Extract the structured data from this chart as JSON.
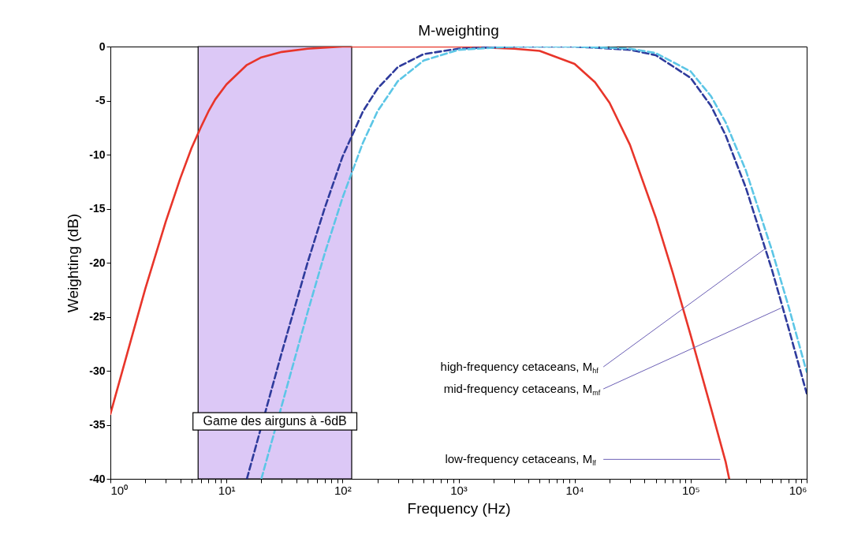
{
  "chart_data": {
    "type": "line",
    "title": "M-weighting",
    "xlabel": "Frequency (Hz)",
    "ylabel": "Weighting (dB)",
    "log": "x",
    "xlim": [
      1,
      1000000
    ],
    "ylim": [
      -40,
      0
    ],
    "xticks": [
      {
        "value": 1,
        "label": "10⁰"
      },
      {
        "value": 2,
        "label": null
      },
      {
        "value": 3,
        "label": null
      },
      {
        "value": 4,
        "label": null
      },
      {
        "value": 5,
        "label": null
      },
      {
        "value": 6,
        "label": null
      },
      {
        "value": 7,
        "label": null
      },
      {
        "value": 8,
        "label": null
      },
      {
        "value": 9,
        "label": null
      },
      {
        "value": 10,
        "label": "10¹"
      },
      {
        "value": 20,
        "label": null
      },
      {
        "value": 30,
        "label": null
      },
      {
        "value": 40,
        "label": null
      },
      {
        "value": 50,
        "label": null
      },
      {
        "value": 60,
        "label": null
      },
      {
        "value": 70,
        "label": null
      },
      {
        "value": 80,
        "label": null
      },
      {
        "value": 90,
        "label": null
      },
      {
        "value": 100,
        "label": "10²"
      },
      {
        "value": 200,
        "label": null
      },
      {
        "value": 300,
        "label": null
      },
      {
        "value": 400,
        "label": null
      },
      {
        "value": 500,
        "label": null
      },
      {
        "value": 600,
        "label": null
      },
      {
        "value": 700,
        "label": null
      },
      {
        "value": 800,
        "label": null
      },
      {
        "value": 900,
        "label": null
      },
      {
        "value": 1000,
        "label": "10³"
      },
      {
        "value": 2000,
        "label": null
      },
      {
        "value": 3000,
        "label": null
      },
      {
        "value": 4000,
        "label": null
      },
      {
        "value": 5000,
        "label": null
      },
      {
        "value": 6000,
        "label": null
      },
      {
        "value": 7000,
        "label": null
      },
      {
        "value": 8000,
        "label": null
      },
      {
        "value": 9000,
        "label": null
      },
      {
        "value": 10000,
        "label": "10⁴"
      },
      {
        "value": 20000,
        "label": null
      },
      {
        "value": 30000,
        "label": null
      },
      {
        "value": 40000,
        "label": null
      },
      {
        "value": 50000,
        "label": null
      },
      {
        "value": 60000,
        "label": null
      },
      {
        "value": 70000,
        "label": null
      },
      {
        "value": 80000,
        "label": null
      },
      {
        "value": 90000,
        "label": null
      },
      {
        "value": 100000,
        "label": "10⁵"
      },
      {
        "value": 200000,
        "label": null
      },
      {
        "value": 300000,
        "label": null
      },
      {
        "value": 400000,
        "label": null
      },
      {
        "value": 500000,
        "label": null
      },
      {
        "value": 600000,
        "label": null
      },
      {
        "value": 700000,
        "label": null
      },
      {
        "value": 800000,
        "label": null
      },
      {
        "value": 900000,
        "label": null
      },
      {
        "value": 1000000,
        "label": "10⁶"
      }
    ],
    "yticks": [
      0,
      -5,
      -10,
      -15,
      -20,
      -25,
      -30,
      -35,
      -40
    ],
    "series": [
      {
        "color": "#e8352a",
        "line_style": "solid",
        "x": [
          1,
          1.5,
          2,
          3,
          4,
          5,
          6,
          7,
          8,
          10,
          15,
          20,
          30,
          50,
          100,
          1000,
          3000,
          5000,
          10000,
          15000,
          20000,
          30000,
          50000,
          70000,
          100000,
          150000,
          200000,
          215000
        ],
        "values": [
          -34,
          -27.2,
          -22.4,
          -16.2,
          -12.2,
          -9.4,
          -7.5,
          -6,
          -4.9,
          -3.5,
          -1.7,
          -1,
          -0.5,
          -0.2,
          0,
          0,
          -0.2,
          -0.4,
          -1.6,
          -3.3,
          -5.2,
          -9.1,
          -15.8,
          -20.9,
          -26.7,
          -33.5,
          -38.4,
          -40
        ]
      },
      {
        "color": "#2e3b9c",
        "line_style": "dashed",
        "x": [
          15,
          30,
          50,
          70,
          100,
          150,
          200,
          300,
          500,
          1000,
          3000,
          10000,
          30000,
          50000,
          100000,
          150000,
          200000,
          300000,
          500000,
          700000,
          1000000
        ],
        "values": [
          -40,
          -28.3,
          -20,
          -15,
          -10.2,
          -6,
          -3.9,
          -1.9,
          -0.7,
          -0.2,
          0,
          0,
          -0.3,
          -0.8,
          -2.9,
          -5.5,
          -8.2,
          -13.1,
          -20.6,
          -26.1,
          -32.1
        ]
      },
      {
        "color": "#5cc6e6",
        "line_style": "dashed",
        "x": [
          20,
          30,
          50,
          70,
          100,
          150,
          200,
          300,
          500,
          1000,
          3000,
          10000,
          30000,
          50000,
          100000,
          150000,
          200000,
          300000,
          500000,
          700000,
          1000000
        ],
        "values": [
          -40,
          -33.2,
          -24.6,
          -19.2,
          -14,
          -8.9,
          -6,
          -3.2,
          -1.3,
          -0.3,
          0,
          0,
          -0.2,
          -0.6,
          -2.3,
          -4.6,
          -7,
          -11.5,
          -18.8,
          -24.1,
          -30.1
        ]
      }
    ],
    "bands": [
      {
        "axis": "x",
        "from": 5.7,
        "to": 120,
        "label": "Game des airguns à -6dB",
        "color": "#dcc8f6"
      }
    ],
    "annotations": [
      {
        "text": "high-frequency cetaceans, M$_{hf}$",
        "x": 440000,
        "y": -18.7
      },
      {
        "text": "mid-frequency cetaceans, M$_{mf}$",
        "x": 600000,
        "y": -24.2
      },
      {
        "text": "low-frequency cetaceans, M$_{lf}$",
        "x": 180000,
        "y": -38.2
      }
    ],
    "grid": false
  }
}
